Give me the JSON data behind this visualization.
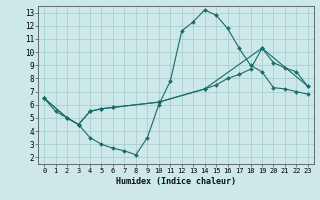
{
  "line1_x": [
    0,
    1,
    2,
    3,
    4,
    5,
    6,
    7,
    8,
    9,
    10,
    11,
    12,
    13,
    14,
    15,
    16,
    17,
    18,
    19,
    20,
    21,
    22,
    23
  ],
  "line1_y": [
    6.5,
    5.5,
    5.0,
    4.5,
    3.5,
    3.0,
    2.7,
    2.5,
    2.2,
    3.5,
    6.0,
    7.8,
    11.6,
    12.3,
    13.2,
    12.8,
    11.8,
    10.3,
    9.0,
    8.5,
    7.3,
    7.2,
    7.0,
    6.8
  ],
  "line2_x": [
    0,
    2,
    3,
    4,
    5,
    6,
    10,
    14,
    15,
    16,
    17,
    18,
    19,
    20,
    21,
    22,
    23
  ],
  "line2_y": [
    6.5,
    5.0,
    4.5,
    5.5,
    5.7,
    5.8,
    6.2,
    7.2,
    7.5,
    8.0,
    8.3,
    8.7,
    10.3,
    9.2,
    8.8,
    8.5,
    7.4
  ],
  "line3_x": [
    0,
    2,
    3,
    4,
    5,
    6,
    10,
    14,
    19,
    23
  ],
  "line3_y": [
    6.5,
    5.0,
    4.5,
    5.5,
    5.7,
    5.8,
    6.2,
    7.2,
    10.3,
    7.4
  ],
  "color": "#1a6b6b",
  "bg_color": "#cce8e8",
  "grid_color": "#aad0d0",
  "xlabel": "Humidex (Indice chaleur)",
  "xlim": [
    -0.5,
    23.5
  ],
  "ylim": [
    1.5,
    13.5
  ],
  "xticks": [
    0,
    1,
    2,
    3,
    4,
    5,
    6,
    7,
    8,
    9,
    10,
    11,
    12,
    13,
    14,
    15,
    16,
    17,
    18,
    19,
    20,
    21,
    22,
    23
  ],
  "yticks": [
    2,
    3,
    4,
    5,
    6,
    7,
    8,
    9,
    10,
    11,
    12,
    13
  ]
}
